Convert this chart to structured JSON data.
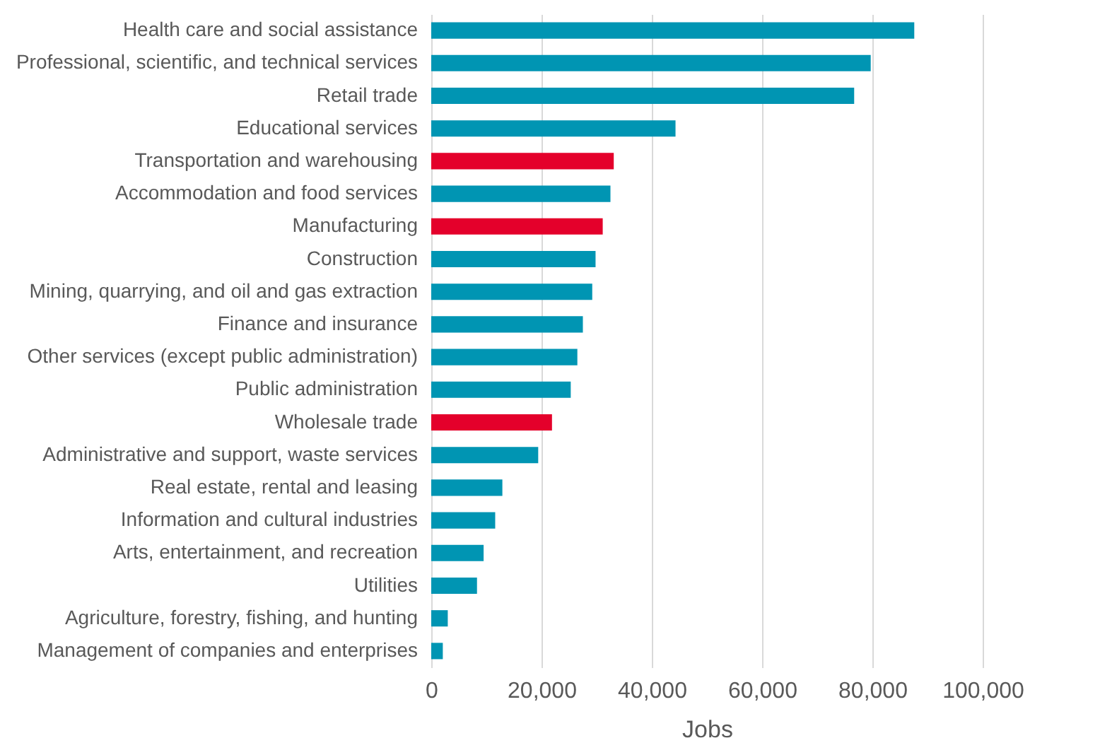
{
  "chart_data": {
    "type": "bar",
    "orientation": "horizontal",
    "xlabel": "Jobs",
    "categories": [
      "Health care and social assistance",
      "Professional, scientific, and technical services",
      "Retail trade",
      "Educational services",
      "Transportation and warehousing",
      "Accommodation and food services",
      "Manufacturing",
      "Construction",
      "Mining, quarrying, and oil and gas extraction",
      "Finance and insurance",
      "Other services (except public administration)",
      "Public administration",
      "Wholesale trade",
      "Administrative and support, waste services",
      "Real estate, rental and leasing",
      "Information and cultural industries",
      "Arts, entertainment, and recreation",
      "Utilities",
      "Agriculture, forestry, fishing, and hunting",
      "Management of companies and enterprises"
    ],
    "values": [
      87600,
      79700,
      76700,
      44300,
      33100,
      32500,
      31100,
      29800,
      29200,
      27500,
      26500,
      25300,
      21900,
      19400,
      12900,
      11600,
      9500,
      8300,
      3000,
      2100
    ],
    "colors": [
      "#0095b3",
      "#0095b3",
      "#0095b3",
      "#0095b3",
      "#e4002b",
      "#0095b3",
      "#e4002b",
      "#0095b3",
      "#0095b3",
      "#0095b3",
      "#0095b3",
      "#0095b3",
      "#e4002b",
      "#0095b3",
      "#0095b3",
      "#0095b3",
      "#0095b3",
      "#0095b3",
      "#0095b3",
      "#0095b3"
    ],
    "xlim": [
      0,
      100000
    ],
    "xticks": [
      0,
      {
        "value": 20000,
        "label": "20,000"
      },
      {
        "value": 40000,
        "label": "40,000"
      },
      {
        "value": 60000,
        "label": "60,000"
      },
      {
        "value": 80000,
        "label": "80,000"
      },
      {
        "value": 100000,
        "label": "100,000"
      }
    ],
    "grid": "x"
  }
}
